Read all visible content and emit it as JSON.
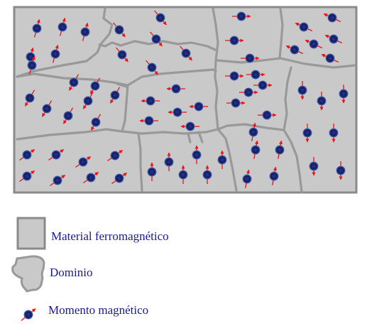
{
  "colors": {
    "material_fill": "#c9c9c9",
    "boundary": "#999999",
    "border": "#8a8a8a",
    "arrow": "#ee1111",
    "dipole": "#101a5e",
    "dipole_glow": "#5b75c8",
    "legend_text": "#1a1a8c"
  },
  "legend": {
    "material_label": "Material ferromagnético",
    "domain_label": "Dominio",
    "moment_label": "Momento magnético"
  },
  "icons": {
    "material": "gray-square-icon",
    "domain": "domain-outline-icon",
    "moment": "dipole-arrow-icon"
  },
  "domains": [
    {
      "name": "domain-1",
      "direction_deg": 75,
      "moment_count": 6
    },
    {
      "name": "domain-2",
      "direction_deg": -50,
      "moment_count": 6
    },
    {
      "name": "domain-3",
      "direction_deg": 0,
      "moment_count": 5
    },
    {
      "name": "domain-4",
      "direction_deg": 155,
      "moment_count": 6
    },
    {
      "name": "domain-5",
      "direction_deg": 240,
      "moment_count": 8
    },
    {
      "name": "domain-6",
      "direction_deg": 180,
      "moment_count": 6
    },
    {
      "name": "domain-7",
      "direction_deg": 0,
      "moment_count": 4
    },
    {
      "name": "domain-8",
      "direction_deg": -90,
      "moment_count": 3
    },
    {
      "name": "domain-9",
      "direction_deg": 35,
      "moment_count": 8
    },
    {
      "name": "domain-10",
      "direction_deg": 90,
      "moment_count": 6
    },
    {
      "name": "domain-11",
      "direction_deg": 80,
      "moment_count": 5
    },
    {
      "name": "domain-12",
      "direction_deg": -90,
      "moment_count": 4
    }
  ]
}
